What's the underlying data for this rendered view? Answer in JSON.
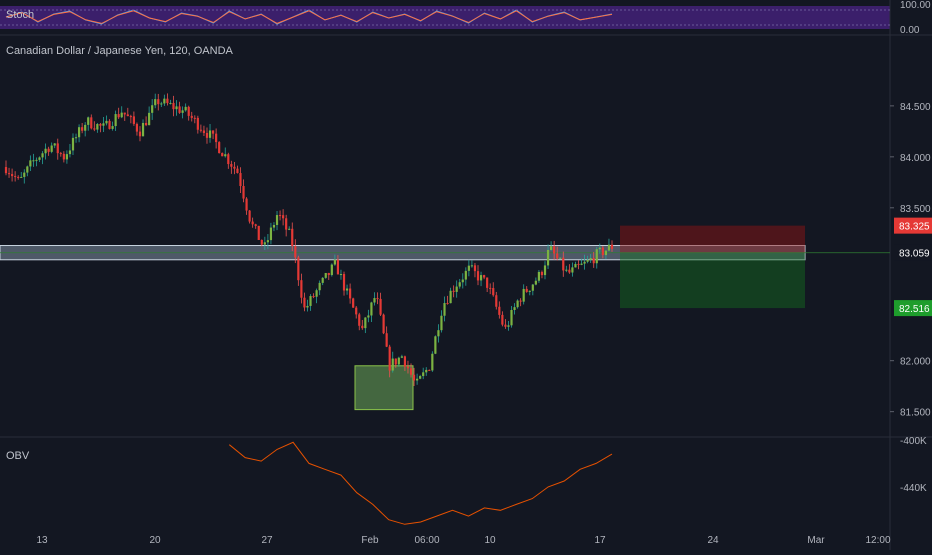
{
  "chart_data": {
    "type": "candlestick",
    "title": "Canadian Dollar / Japanese Yen, 120, OANDA",
    "x_ticks": [
      "13",
      "20",
      "27",
      "Feb",
      "06:00",
      "10",
      "17",
      "24",
      "Mar",
      "12:00"
    ],
    "y_ticks": [
      "84.500",
      "84.000",
      "83.500",
      "82.000",
      "81.500"
    ],
    "y_range": [
      81.32,
      84.95
    ],
    "price_labels": {
      "stop": {
        "text": "83.325",
        "value": 83.325,
        "color": "#e53935"
      },
      "current": {
        "text": "83.059",
        "value": 83.059,
        "color": "#131722"
      },
      "target": {
        "text": "82.516",
        "value": 82.516,
        "color": "#1e9d2c"
      }
    },
    "close_path": [
      [
        0,
        83.9
      ],
      [
        3,
        83.75
      ],
      [
        6,
        83.95
      ],
      [
        10,
        84.12
      ],
      [
        13,
        84.0
      ],
      [
        18,
        84.35
      ],
      [
        22,
        84.28
      ],
      [
        26,
        84.45
      ],
      [
        30,
        84.25
      ],
      [
        34,
        84.55
      ],
      [
        40,
        84.45
      ],
      [
        46,
        84.2
      ],
      [
        52,
        83.85
      ],
      [
        55,
        83.35
      ],
      [
        58,
        83.1
      ],
      [
        61,
        83.45
      ],
      [
        64,
        83.2
      ],
      [
        67,
        82.5
      ],
      [
        70,
        82.7
      ],
      [
        74,
        82.95
      ],
      [
        77,
        82.6
      ],
      [
        80,
        82.3
      ],
      [
        83,
        82.65
      ],
      [
        86,
        81.95
      ],
      [
        89,
        82.05
      ],
      [
        92,
        81.75
      ],
      [
        95,
        81.95
      ],
      [
        98,
        82.55
      ],
      [
        101,
        82.75
      ],
      [
        104,
        82.9
      ],
      [
        108,
        82.75
      ],
      [
        112,
        82.3
      ],
      [
        115,
        82.6
      ],
      [
        120,
        82.85
      ],
      [
        122,
        83.1
      ],
      [
        126,
        82.85
      ],
      [
        130,
        82.95
      ],
      [
        133,
        83.05
      ],
      [
        136,
        83.12
      ]
    ],
    "zones": {
      "support": {
        "from": 83.13,
        "to": 82.99
      },
      "accumulation_box": {
        "from": 81.95,
        "to": 81.52
      }
    },
    "position": {
      "entry": 83.059,
      "stop": 83.325,
      "target": 82.516,
      "direction": "short"
    },
    "stoch": {
      "label": "Stoch",
      "ticks": [
        "100.00",
        "0.00"
      ],
      "values": [
        55,
        80,
        30,
        70,
        85,
        40,
        20,
        65,
        90,
        50,
        30,
        75,
        60,
        25,
        85,
        45,
        70,
        20,
        55,
        90,
        40,
        65,
        30,
        80,
        50,
        70,
        35,
        85,
        60,
        25,
        75,
        45,
        90,
        30,
        60,
        80,
        40,
        55,
        70
      ]
    },
    "obv": {
      "label": "OBV",
      "ticks": [
        "-400K",
        "-440K"
      ],
      "y_range": [
        -470,
        -400
      ],
      "values": [
        null,
        null,
        null,
        null,
        null,
        null,
        null,
        null,
        null,
        null,
        null,
        null,
        null,
        null,
        -404,
        -415,
        -418,
        -408,
        -402,
        -420,
        -425,
        -430,
        -445,
        -455,
        -468,
        -472,
        -470,
        -465,
        -460,
        -465,
        -458,
        -460,
        -455,
        -450,
        -440,
        -435,
        -425,
        -420,
        -412
      ]
    }
  }
}
